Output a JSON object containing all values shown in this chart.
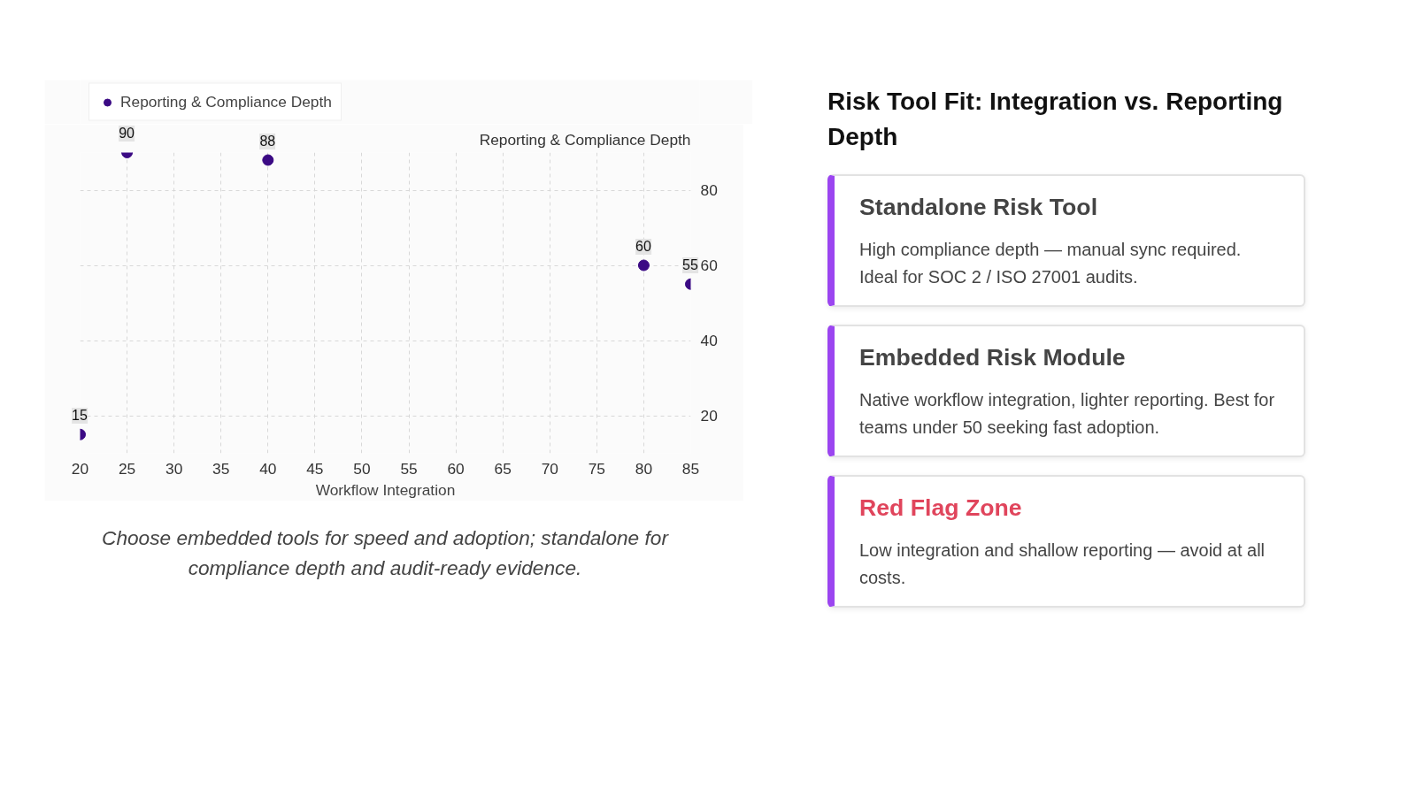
{
  "chart_data": [
    {
      "type": "scatter",
      "xlabel": "Workflow Integration",
      "ylabel": "Reporting & Compliance Depth",
      "x": [
        20,
        25,
        40,
        80,
        85
      ],
      "series": [
        {
          "name": "Reporting & Compliance Depth",
          "color": "#3b0a84",
          "values": [
            15,
            90,
            88,
            60,
            55
          ]
        }
      ],
      "xlim": [
        20,
        85
      ],
      "ylim": [
        10,
        90
      ],
      "xticks": [
        20,
        25,
        30,
        35,
        40,
        45,
        50,
        55,
        60,
        65,
        70,
        75,
        80,
        85
      ],
      "yticks": [
        20,
        40,
        60,
        80
      ],
      "grid": true,
      "legend": "top left",
      "marker": "circle",
      "data_labels": true,
      "annotations": [
        "Choose embedded tools for speed and adoption; standalone for compliance depth and audit-ready evidence."
      ]
    },
    {
      "type": "other",
      "title": "Risk Tool Fit: Integration vs. Reporting Depth",
      "annotations": [
        "Standalone Risk Tool",
        "High compliance depth — manual sync required. Ideal for SOC 2 / ISO 27001 audits.",
        "Embedded Risk Module",
        "Native workflow integration, lighter reporting. Best for teams under 50 seeking fast adoption.",
        "Red Flag Zone",
        "Low integration and shallow reporting — avoid at all costs."
      ]
    }
  ]
}
